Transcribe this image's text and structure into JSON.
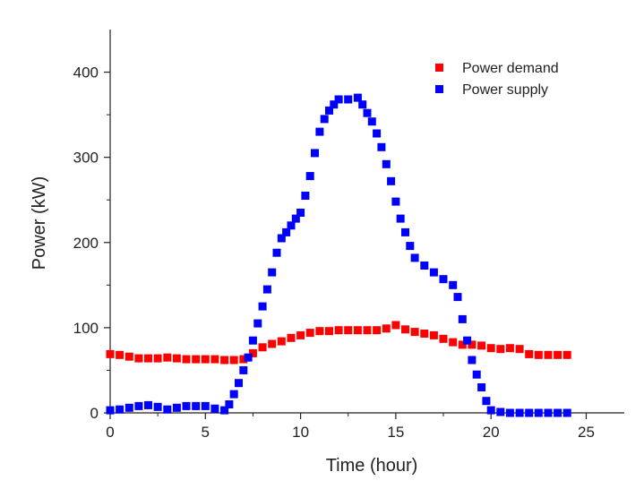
{
  "chart_data": {
    "type": "scatter",
    "title": "",
    "xlabel": "Time (hour)",
    "ylabel": "Power (kW)",
    "xlim": [
      0,
      27
    ],
    "ylim": [
      0,
      450
    ],
    "x_ticks": [
      0,
      5,
      10,
      15,
      20,
      25
    ],
    "y_ticks": [
      0,
      100,
      200,
      300,
      400
    ],
    "grid": false,
    "legend_position": "top-right",
    "series": [
      {
        "name": "Power demand",
        "color": "#ff0000",
        "marker": "square",
        "points": [
          [
            0,
            69
          ],
          [
            0.5,
            68
          ],
          [
            1,
            66
          ],
          [
            1.5,
            64
          ],
          [
            2,
            64
          ],
          [
            2.5,
            64
          ],
          [
            3,
            65
          ],
          [
            3.5,
            64
          ],
          [
            4,
            63
          ],
          [
            4.5,
            63
          ],
          [
            5,
            63
          ],
          [
            5.5,
            63
          ],
          [
            6,
            62
          ],
          [
            6.5,
            62
          ],
          [
            7,
            63
          ],
          [
            7.5,
            70
          ],
          [
            8,
            77
          ],
          [
            8.5,
            81
          ],
          [
            9,
            84
          ],
          [
            9.5,
            88
          ],
          [
            10,
            91
          ],
          [
            10.5,
            94
          ],
          [
            11,
            96
          ],
          [
            11.5,
            96
          ],
          [
            12,
            97
          ],
          [
            12.5,
            97
          ],
          [
            13,
            97
          ],
          [
            13.5,
            97
          ],
          [
            14,
            97
          ],
          [
            14.5,
            99
          ],
          [
            15,
            103
          ],
          [
            15.5,
            98
          ],
          [
            16,
            95
          ],
          [
            16.5,
            93
          ],
          [
            17,
            91
          ],
          [
            17.5,
            87
          ],
          [
            18,
            83
          ],
          [
            18.5,
            80
          ],
          [
            19,
            80
          ],
          [
            19.5,
            79
          ],
          [
            20,
            76
          ],
          [
            20.5,
            75
          ],
          [
            21,
            76
          ],
          [
            21.5,
            75
          ],
          [
            22,
            69
          ],
          [
            22.5,
            68
          ],
          [
            23,
            68
          ],
          [
            23.5,
            68
          ],
          [
            24,
            68
          ]
        ]
      },
      {
        "name": "Power supply",
        "color": "#0000ff",
        "marker": "square",
        "points": [
          [
            0,
            3
          ],
          [
            0.5,
            4
          ],
          [
            1,
            6
          ],
          [
            1.5,
            8
          ],
          [
            2,
            9
          ],
          [
            2.5,
            7
          ],
          [
            3,
            4
          ],
          [
            3.5,
            6
          ],
          [
            4,
            8
          ],
          [
            4.5,
            8
          ],
          [
            5,
            8
          ],
          [
            5.5,
            5
          ],
          [
            6,
            3
          ],
          [
            6.25,
            10
          ],
          [
            6.5,
            22
          ],
          [
            6.75,
            35
          ],
          [
            7,
            50
          ],
          [
            7.25,
            65
          ],
          [
            7.5,
            85
          ],
          [
            7.75,
            105
          ],
          [
            8,
            125
          ],
          [
            8.25,
            145
          ],
          [
            8.5,
            165
          ],
          [
            8.75,
            188
          ],
          [
            9,
            205
          ],
          [
            9.25,
            212
          ],
          [
            9.5,
            220
          ],
          [
            9.75,
            228
          ],
          [
            10,
            235
          ],
          [
            10.25,
            255
          ],
          [
            10.5,
            278
          ],
          [
            10.75,
            305
          ],
          [
            11,
            330
          ],
          [
            11.25,
            345
          ],
          [
            11.5,
            355
          ],
          [
            11.75,
            362
          ],
          [
            12,
            368
          ],
          [
            12.5,
            368
          ],
          [
            13,
            370
          ],
          [
            13.25,
            362
          ],
          [
            13.5,
            352
          ],
          [
            13.75,
            342
          ],
          [
            14,
            328
          ],
          [
            14.25,
            312
          ],
          [
            14.5,
            292
          ],
          [
            14.75,
            272
          ],
          [
            15,
            248
          ],
          [
            15.25,
            228
          ],
          [
            15.5,
            212
          ],
          [
            15.75,
            196
          ],
          [
            16,
            182
          ],
          [
            16.5,
            173
          ],
          [
            17,
            165
          ],
          [
            17.5,
            157
          ],
          [
            18,
            150
          ],
          [
            18.25,
            136
          ],
          [
            18.5,
            110
          ],
          [
            18.75,
            85
          ],
          [
            19,
            62
          ],
          [
            19.25,
            45
          ],
          [
            19.5,
            30
          ],
          [
            19.75,
            14
          ],
          [
            20,
            3
          ],
          [
            20.5,
            1
          ],
          [
            21,
            0
          ],
          [
            21.5,
            0
          ],
          [
            22,
            0
          ],
          [
            22.5,
            0
          ],
          [
            23,
            0
          ],
          [
            23.5,
            0
          ],
          [
            24,
            0
          ]
        ]
      }
    ]
  }
}
